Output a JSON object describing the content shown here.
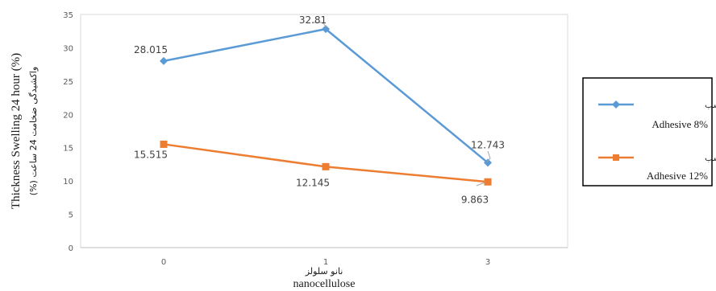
{
  "chart_data": {
    "type": "line",
    "categories": [
      "0",
      "1",
      "3"
    ],
    "x_positions": [
      0,
      1,
      2
    ],
    "yticks": [
      "0",
      "5",
      "10",
      "15",
      "20",
      "25",
      "30",
      "35"
    ],
    "ylim": [
      0,
      35
    ],
    "ylabel": "Thickness Swelling 24 hour (%)",
    "ylabel_fa": "واکشیدگی ضخامت 24 ساعت (%)",
    "xlabel": "nanocellulose",
    "xlabel_fa": "نانو سلولز",
    "grid": false,
    "legend_position": "right",
    "series": [
      {
        "name": "Adhesive 8%",
        "name_fa": "هشت درصد چسب",
        "values": [
          28.015,
          32.81,
          12.743
        ],
        "labels": [
          "28.015",
          "32.81",
          "12.743"
        ],
        "color": "#5b9bd5",
        "marker": "diamond"
      },
      {
        "name": "Adhesive 12%",
        "name_fa": "دوازده درصد چسب",
        "values": [
          15.515,
          12.145,
          9.863
        ],
        "labels": [
          "15.515",
          "12.145",
          "9.863"
        ],
        "color": "#ed7d31",
        "marker": "square"
      }
    ]
  }
}
